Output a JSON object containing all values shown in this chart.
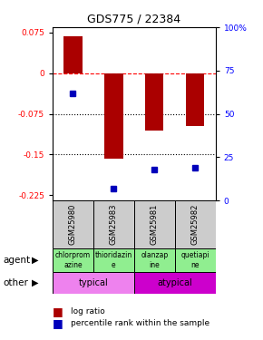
{
  "title": "GDS775 / 22384",
  "samples": [
    "GSM25980",
    "GSM25983",
    "GSM25981",
    "GSM25982"
  ],
  "log_ratios": [
    0.068,
    -0.158,
    -0.105,
    -0.098
  ],
  "percentile_ranks_pct": [
    62,
    7,
    18,
    19
  ],
  "agents": [
    "chlorprom\nazine",
    "thioridazin\ne",
    "olanzap\nine",
    "quetiapi\nne"
  ],
  "agent_color": "#90EE90",
  "typical_color": "#EE82EE",
  "atypical_color": "#CC00CC",
  "bar_color": "#AA0000",
  "dot_color": "#0000BB",
  "ylim_left": [
    -0.235,
    0.085
  ],
  "yticks_left": [
    0.075,
    0.0,
    -0.075,
    -0.15,
    -0.225
  ],
  "ytick_left_labels": [
    "0.075",
    "0",
    "-0.075",
    "-0.15",
    "-0.225"
  ],
  "yticks_right_vals": [
    1.0,
    0.75,
    0.5,
    0.25,
    0.0
  ],
  "yticks_right_labels": [
    "100%",
    "75",
    "50",
    "25",
    "0"
  ],
  "hline_y": 0.0,
  "dotted_lines": [
    -0.075,
    -0.15
  ],
  "bar_width": 0.45
}
